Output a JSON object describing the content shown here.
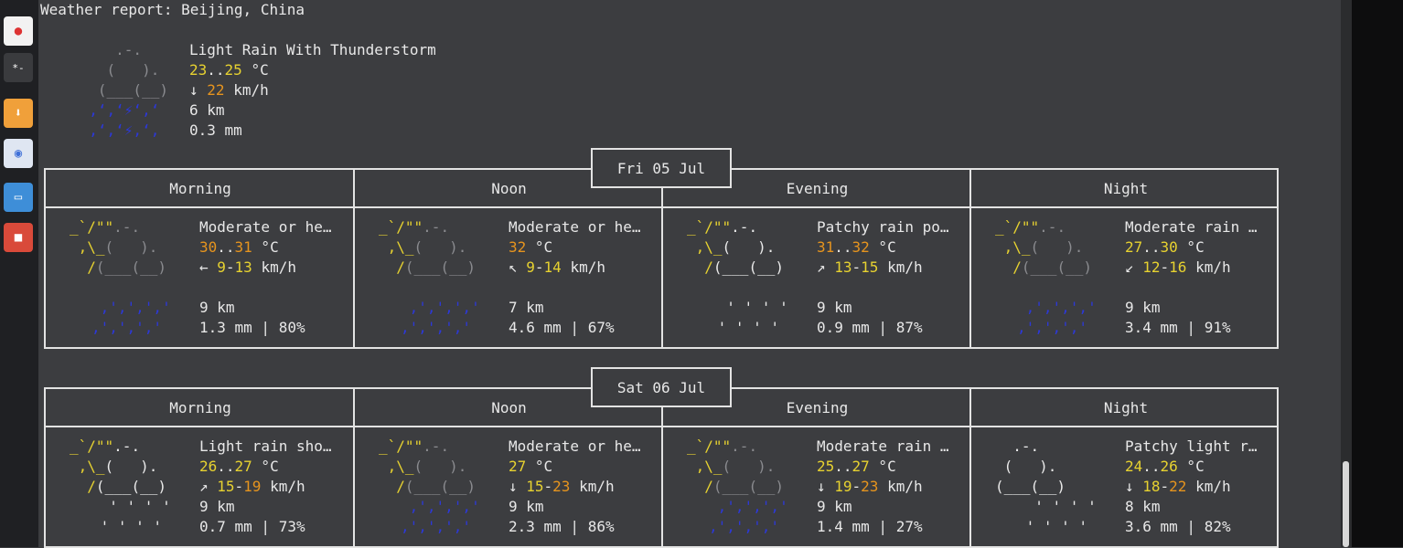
{
  "header": {
    "title": "Weather report: Beijing, China"
  },
  "current": {
    "condition": "Light Rain With Thunderstorm",
    "temp_lo": "23",
    "temp_hi": "25",
    "temp_unit": "°C",
    "wind_dir": "↓",
    "wind_speed": "22",
    "wind_unit": "km/h",
    "visibility": "6 km",
    "precip": "0.3 mm"
  },
  "days": [
    {
      "date": "Fri 05 Jul",
      "periods": [
        {
          "name": "Morning",
          "condition": "Moderate or he…",
          "temp_a": "30",
          "temp_b": "31",
          "wind_dir": "←",
          "wind_a": "9",
          "wind_b": "13",
          "visibility": "9 km",
          "precip": "1.3 mm | 80%"
        },
        {
          "name": "Noon",
          "condition": "Moderate or he…",
          "temp_a": "32",
          "temp_b": "",
          "wind_dir": "↖",
          "wind_a": "9",
          "wind_b": "14",
          "visibility": "7 km",
          "precip": "4.6 mm | 67%"
        },
        {
          "name": "Evening",
          "condition": "Patchy rain po…",
          "temp_a": "31",
          "temp_b": "32",
          "wind_dir": "↗",
          "wind_a": "13",
          "wind_b": "15",
          "visibility": "9 km",
          "precip": "0.9 mm | 87%"
        },
        {
          "name": "Night",
          "condition": "Moderate rain …",
          "temp_a": "27",
          "temp_b": "30",
          "wind_dir": "↙",
          "wind_a": "12",
          "wind_b": "16",
          "visibility": "9 km",
          "precip": "3.4 mm | 91%"
        }
      ]
    },
    {
      "date": "Sat 06 Jul",
      "periods": [
        {
          "name": "Morning",
          "condition": "Light rain sho…",
          "temp_a": "26",
          "temp_b": "27",
          "wind_dir": "↗",
          "wind_a": "15",
          "wind_b": "19",
          "visibility": "9 km",
          "precip": "0.7 mm | 73%"
        },
        {
          "name": "Noon",
          "condition": "Moderate or he…",
          "temp_a": "27",
          "temp_b": "",
          "wind_dir": "↓",
          "wind_a": "15",
          "wind_b": "23",
          "visibility": "9 km",
          "precip": "2.3 mm | 86%"
        },
        {
          "name": "Evening",
          "condition": "Moderate rain …",
          "temp_a": "25",
          "temp_b": "27",
          "wind_dir": "↓",
          "wind_a": "19",
          "wind_b": "23",
          "visibility": "9 km",
          "precip": "1.4 mm | 27%"
        },
        {
          "name": "Night",
          "condition": "Patchy light r…",
          "temp_a": "24",
          "temp_b": "26",
          "wind_dir": "↓",
          "wind_a": "18",
          "wind_b": "22",
          "visibility": "8 km",
          "precip": "3.6 mm | 82%"
        }
      ]
    }
  ],
  "labels": {
    "temp_sep": "..",
    "temp_unit": " °C",
    "wind_sep": "-",
    "wind_unit": " km/h"
  },
  "dock": {
    "items": [
      {
        "icon": "text-editor-icon",
        "color": "#f2f2f2"
      },
      {
        "icon": "terminal-icon",
        "color": "#3a3b3e"
      },
      {
        "icon": "download-icon",
        "color": "#f0a03a"
      },
      {
        "icon": "chat-icon",
        "color": "#dfe6f2"
      },
      {
        "icon": "screen-share-icon",
        "color": "#3e8ed8"
      },
      {
        "icon": "video-record-icon",
        "color": "#d94a3a"
      }
    ]
  }
}
